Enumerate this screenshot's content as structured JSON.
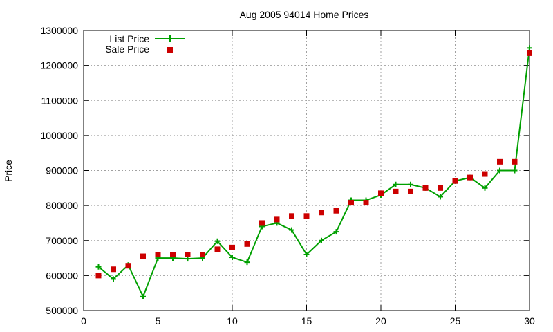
{
  "chart_data": {
    "type": "line",
    "title": "Aug 2005 94014 Home Prices",
    "xlabel": "",
    "ylabel": "Price",
    "xlim": [
      0,
      30
    ],
    "ylim": [
      500000,
      1300000
    ],
    "grid": true,
    "legend_position": "top-left",
    "x_ticks": [
      "0",
      "5",
      "10",
      "15",
      "20",
      "25",
      "30"
    ],
    "y_ticks": [
      "500000",
      "600000",
      "700000",
      "800000",
      "900000",
      "1000000",
      "1100000",
      "1200000",
      "1300000"
    ],
    "x_tick_values": [
      0,
      5,
      10,
      15,
      20,
      25,
      30
    ],
    "y_tick_values": [
      500000,
      600000,
      700000,
      800000,
      900000,
      1000000,
      1100000,
      1200000,
      1300000
    ],
    "x": [
      1,
      2,
      3,
      4,
      5,
      6,
      7,
      8,
      9,
      10,
      11,
      12,
      13,
      14,
      15,
      16,
      17,
      18,
      19,
      20,
      21,
      22,
      23,
      24,
      25,
      26,
      27,
      28,
      29,
      30
    ],
    "series": [
      {
        "name": "List Price",
        "style": "line-plus",
        "color": "#00a000",
        "values": [
          625000,
          590000,
          630000,
          540000,
          650000,
          650000,
          648000,
          650000,
          698000,
          652000,
          638000,
          740000,
          750000,
          730000,
          660000,
          700000,
          725000,
          815000,
          815000,
          830000,
          860000,
          860000,
          850000,
          825000,
          870000,
          880000,
          850000,
          900000,
          900000,
          1250000
        ]
      },
      {
        "name": "Sale Price",
        "style": "square",
        "color": "#cc0000",
        "values": [
          600000,
          618000,
          628000,
          655000,
          660000,
          660000,
          660000,
          660000,
          675000,
          680000,
          690000,
          750000,
          760000,
          770000,
          770000,
          780000,
          785000,
          808000,
          808000,
          835000,
          840000,
          840000,
          850000,
          850000,
          870000,
          880000,
          890000,
          925000,
          925000,
          1235000
        ]
      }
    ]
  }
}
